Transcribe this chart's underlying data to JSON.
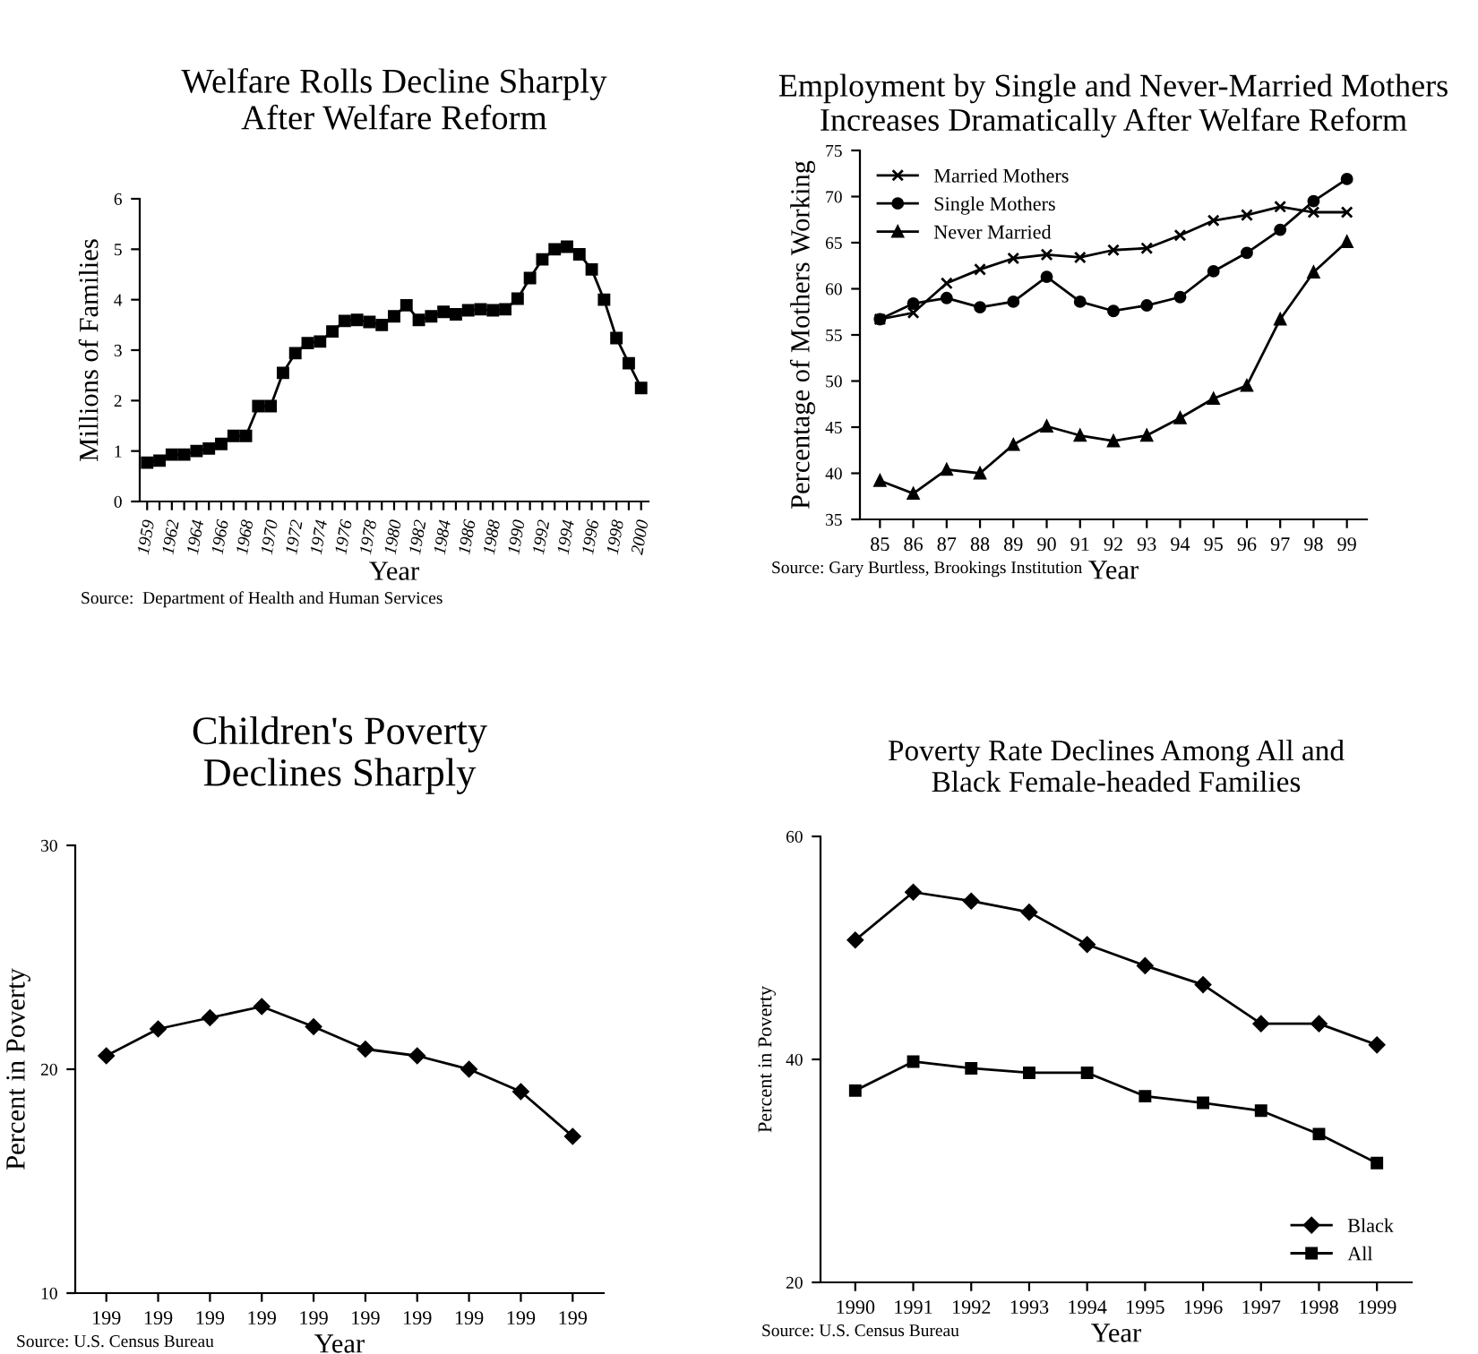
{
  "chart_data": [
    {
      "type": "line",
      "title": "Welfare Rolls Decline Sharply\nAfter Welfare Reform",
      "xlabel": "Year",
      "ylabel": "Millions of Families",
      "annotations": [
        "Source:  Department of Health and Human Services"
      ],
      "categories": [
        "1959",
        null,
        "1962",
        null,
        "1964",
        null,
        "1966",
        null,
        "1968",
        null,
        "1970",
        null,
        "1972",
        null,
        "1974",
        null,
        "1976",
        null,
        "1978",
        null,
        "1980",
        null,
        "1982",
        null,
        "1984",
        null,
        "1986",
        null,
        "1988",
        null,
        "1990",
        null,
        "1992",
        null,
        "1994",
        null,
        "1996",
        null,
        "1998",
        null,
        "2000"
      ],
      "series": [
        {
          "color": "#000000",
          "marker": "square",
          "values": [
            0.77,
            0.81,
            0.93,
            0.93,
            1.0,
            1.05,
            1.14,
            1.3,
            1.3,
            1.89,
            1.89,
            2.55,
            2.94,
            3.14,
            3.17,
            3.37,
            3.58,
            3.6,
            3.56,
            3.5,
            3.67,
            3.89,
            3.6,
            3.67,
            3.76,
            3.71,
            3.79,
            3.81,
            3.79,
            3.81,
            4.02,
            4.43,
            4.8,
            5.0,
            5.05,
            4.9,
            4.6,
            4.0,
            3.24,
            2.74,
            2.25
          ]
        }
      ],
      "ylim": [
        0,
        6
      ],
      "yticks": [
        0,
        1,
        2,
        3,
        4,
        5,
        6
      ],
      "grid": false,
      "legend": false
    },
    {
      "type": "line",
      "title": "Employment by Single and Never-Married Mothers\nIncreases Dramatically After Welfare Reform",
      "xlabel": "Year",
      "ylabel": "Percentage of Mothers Working",
      "annotations": [
        "Source: Gary Burtless, Brookings Institution"
      ],
      "categories": [
        "85",
        "86",
        "87",
        "88",
        "89",
        "90",
        "91",
        "92",
        "93",
        "94",
        "95",
        "96",
        "97",
        "98",
        "99"
      ],
      "series": [
        {
          "name": "Married Mothers",
          "color": "#000000",
          "marker": "cross",
          "values": [
            56.7,
            57.4,
            60.6,
            62.1,
            63.3,
            63.7,
            63.4,
            64.2,
            64.4,
            65.8,
            67.4,
            68.0,
            68.9,
            68.3,
            68.3
          ]
        },
        {
          "name": "Single Mothers",
          "color": "#000000",
          "marker": "circle",
          "values": [
            56.7,
            58.4,
            59.0,
            58.0,
            58.6,
            61.3,
            58.6,
            57.6,
            58.2,
            59.1,
            61.9,
            63.9,
            66.4,
            69.5,
            71.9
          ]
        },
        {
          "name": "Never Married",
          "color": "#000000",
          "marker": "triangle",
          "values": [
            39.2,
            37.8,
            40.4,
            40.0,
            43.1,
            45.1,
            44.1,
            43.5,
            44.1,
            46.0,
            48.1,
            49.5,
            56.7,
            61.8,
            65.1
          ]
        }
      ],
      "ylim": [
        35,
        75
      ],
      "yticks": [
        35,
        40,
        45,
        50,
        55,
        60,
        65,
        70,
        75
      ],
      "grid": false,
      "legend": "top left"
    },
    {
      "type": "line",
      "title": "Children's Poverty\nDeclines Sharply",
      "xlabel": "Year",
      "ylabel": "Percent in Poverty",
      "annotations": [
        "Source: U.S. Census Bureau"
      ],
      "categories": [
        "199",
        "199",
        "199",
        "199",
        "199",
        "199",
        "199",
        "199",
        "199",
        "199"
      ],
      "series": [
        {
          "color": "#000000",
          "marker": "diamond",
          "values": [
            20.6,
            21.8,
            22.3,
            22.8,
            21.9,
            20.9,
            20.6,
            20.0,
            19.0,
            17.0
          ]
        }
      ],
      "ylim": [
        10,
        30
      ],
      "yticks": [
        10,
        20,
        30
      ],
      "grid": false,
      "legend": false
    },
    {
      "type": "line",
      "title": "Poverty Rate Declines Among All and\nBlack Female-headed Families",
      "xlabel": "Year",
      "ylabel": "Percent in Poverty",
      "annotations": [
        "Source: U.S. Census Bureau"
      ],
      "categories": [
        "1990",
        "1991",
        "1992",
        "1993",
        "1994",
        "1995",
        "1996",
        "1997",
        "1998",
        "1999"
      ],
      "series": [
        {
          "name": "Black",
          "color": "#000000",
          "marker": "diamond",
          "values": [
            50.7,
            55.0,
            54.2,
            53.2,
            50.3,
            48.4,
            46.7,
            43.2,
            43.2,
            41.3
          ]
        },
        {
          "name": "All",
          "color": "#000000",
          "marker": "square",
          "values": [
            37.2,
            39.8,
            39.2,
            38.8,
            38.8,
            36.7,
            36.1,
            35.4,
            33.3,
            30.7
          ]
        }
      ],
      "ylim": [
        20,
        60
      ],
      "yticks": [
        20,
        40,
        60
      ],
      "grid": false,
      "legend": "lower right"
    }
  ]
}
